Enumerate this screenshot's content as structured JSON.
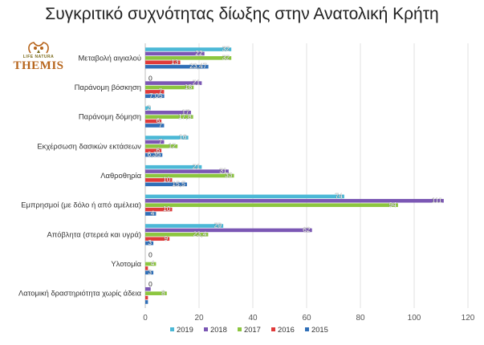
{
  "chart_data": {
    "type": "bar",
    "orientation": "horizontal",
    "title": "Συγκριτικό συχνότητας δίωξης στην Ανατολική Κρήτη",
    "categories": [
      "Μεταβολή αιγιαλού",
      "Παράνομη βόσκηση",
      "Παράνομη δόμηση",
      "Εκχέρσωση δασικών εκτάσεων",
      "Λαθροθηρία",
      "Εμπρησμοί (με δόλο ή από αμέλεια)",
      "Απόβλητα (στερεά και υγρά)",
      "Υλοτομία",
      "Λατομική δραστηριότητα χωρίς άδεια"
    ],
    "series": [
      {
        "name": "2019",
        "color": "#4bb8d6",
        "values": [
          32,
          0,
          2,
          16,
          21,
          74,
          29,
          0,
          0
        ],
        "labels": [
          "32",
          "0",
          "2",
          "16",
          "21",
          "74",
          "29",
          "0",
          "0"
        ]
      },
      {
        "name": "2018",
        "color": "#7b57b4",
        "values": [
          22,
          21,
          17,
          7,
          31,
          111,
          62,
          0,
          2
        ],
        "labels": [
          "22",
          "21",
          "17",
          "7",
          "31",
          "111",
          "62",
          "",
          ""
        ]
      },
      {
        "name": "2017",
        "color": "#8cc63f",
        "values": [
          32,
          18,
          17.8,
          12,
          33,
          94,
          23.4,
          4,
          8
        ],
        "labels": [
          "32",
          "18",
          "17,8",
          "12",
          "33",
          "94",
          "23,4",
          "4",
          "8"
        ]
      },
      {
        "name": "2016",
        "color": "#e03a3a",
        "values": [
          13,
          7,
          6,
          6,
          10,
          10,
          9,
          1,
          1
        ],
        "labels": [
          "13",
          "7",
          "6",
          "6",
          "10",
          "10",
          "9",
          "",
          ""
        ]
      },
      {
        "name": "2015",
        "color": "#2f6fb8",
        "values": [
          23.47,
          7.05,
          7,
          6.35,
          15.5,
          4,
          3,
          3,
          1
        ],
        "labels": [
          "23,47",
          "7,05",
          "7",
          "6,35",
          "15,5",
          "4",
          "3",
          "3",
          ""
        ]
      }
    ],
    "x_ticks": [
      "0",
      "20",
      "40",
      "60",
      "80",
      "100",
      "120"
    ],
    "xlim": [
      0,
      120
    ],
    "grid": true,
    "legend_position": "bottom"
  },
  "logo": {
    "top_text": "LIFE NATURA",
    "main_text": "THEMIS",
    "colors": {
      "gold": "#b7651c",
      "olive": "#7a6a1a"
    }
  }
}
